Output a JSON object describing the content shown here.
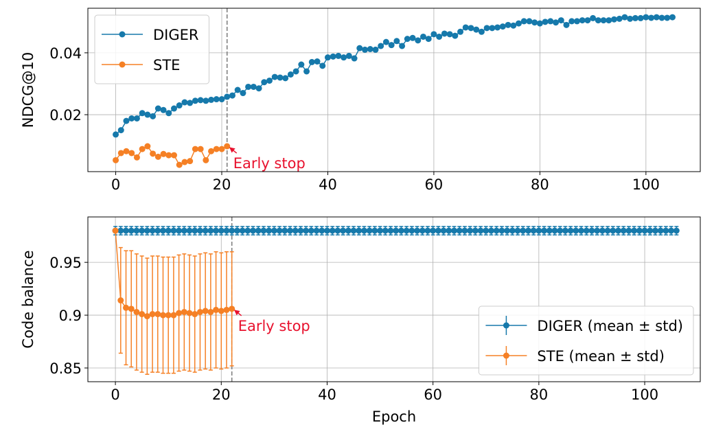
{
  "chart_data": [
    {
      "type": "line",
      "ylabel": "NDCG@10",
      "xlim": [
        -5.25,
        110.25
      ],
      "xticks": [
        0,
        20,
        40,
        60,
        80,
        100
      ],
      "ylim": [
        0.0016,
        0.0544
      ],
      "yticks": [
        0.02,
        0.04
      ],
      "grid": true,
      "legend": "upper left",
      "vline": 21,
      "annotation": {
        "text": "Early stop",
        "x": 21,
        "y": 0.0098,
        "color": "#e8112d"
      },
      "series": [
        {
          "name": "DIGER",
          "color": "#1679ab",
          "x": [
            0,
            1,
            2,
            3,
            4,
            5,
            6,
            7,
            8,
            9,
            10,
            11,
            12,
            13,
            14,
            15,
            16,
            17,
            18,
            19,
            20,
            21,
            22,
            23,
            24,
            25,
            26,
            27,
            28,
            29,
            30,
            31,
            32,
            33,
            34,
            35,
            36,
            37,
            38,
            39,
            40,
            41,
            42,
            43,
            44,
            45,
            46,
            47,
            48,
            49,
            50,
            51,
            52,
            53,
            54,
            55,
            56,
            57,
            58,
            59,
            60,
            61,
            62,
            63,
            64,
            65,
            66,
            67,
            68,
            69,
            70,
            71,
            72,
            73,
            74,
            75,
            76,
            77,
            78,
            79,
            80,
            81,
            82,
            83,
            84,
            85,
            86,
            87,
            88,
            89,
            90,
            91,
            92,
            93,
            94,
            95,
            96,
            97,
            98,
            99,
            100,
            101,
            102,
            103,
            104,
            105
          ],
          "values": [
            0.0136,
            0.015,
            0.018,
            0.0188,
            0.0188,
            0.0205,
            0.02,
            0.0195,
            0.022,
            0.0215,
            0.0205,
            0.022,
            0.023,
            0.024,
            0.0238,
            0.0245,
            0.0247,
            0.0245,
            0.0248,
            0.025,
            0.025,
            0.0258,
            0.0262,
            0.028,
            0.027,
            0.029,
            0.029,
            0.0285,
            0.0305,
            0.031,
            0.0322,
            0.032,
            0.0318,
            0.033,
            0.034,
            0.0362,
            0.034,
            0.037,
            0.0372,
            0.0358,
            0.0385,
            0.0388,
            0.039,
            0.0385,
            0.039,
            0.0382,
            0.0415,
            0.041,
            0.0412,
            0.041,
            0.0422,
            0.0435,
            0.0425,
            0.0438,
            0.0422,
            0.0445,
            0.0448,
            0.044,
            0.0452,
            0.0445,
            0.046,
            0.0452,
            0.0462,
            0.046,
            0.0455,
            0.0468,
            0.0482,
            0.048,
            0.0475,
            0.0468,
            0.048,
            0.048,
            0.0482,
            0.0485,
            0.049,
            0.0488,
            0.0495,
            0.0502,
            0.0502,
            0.0498,
            0.0495,
            0.05,
            0.0502,
            0.0498,
            0.0505,
            0.049,
            0.0502,
            0.0502,
            0.0505,
            0.0505,
            0.0512,
            0.0505,
            0.0505,
            0.0505,
            0.0508,
            0.051,
            0.0515,
            0.051,
            0.0512,
            0.0512,
            0.0515,
            0.0513,
            0.0515,
            0.0513,
            0.0513,
            0.0515
          ]
        },
        {
          "name": "STE",
          "color": "#f58025",
          "x": [
            0,
            1,
            2,
            3,
            4,
            5,
            6,
            7,
            8,
            9,
            10,
            11,
            12,
            13,
            14,
            15,
            16,
            17,
            18,
            19,
            20,
            21
          ],
          "values": [
            0.0053,
            0.0076,
            0.0082,
            0.0076,
            0.0062,
            0.0089,
            0.0098,
            0.0074,
            0.0064,
            0.0073,
            0.0069,
            0.0069,
            0.0038,
            0.0047,
            0.005,
            0.0089,
            0.0089,
            0.0053,
            0.0082,
            0.0089,
            0.0089,
            0.0098
          ]
        }
      ]
    },
    {
      "type": "errorbar",
      "ylabel": "Code balance",
      "xlabel": "Epoch",
      "xlim": [
        -5.2,
        110.5
      ],
      "xticks": [
        0,
        20,
        40,
        60,
        80,
        100
      ],
      "ylim": [
        0.837,
        0.993
      ],
      "yticks": [
        0.85,
        0.9,
        0.95
      ],
      "grid": true,
      "legend": "lower right",
      "vline": 22,
      "annotation": {
        "text": "Early stop",
        "x": 22,
        "y": 0.906,
        "color": "#e8112d"
      },
      "series": [
        {
          "name": "DIGER (mean ± std)",
          "color": "#1679ab",
          "x": [
            0,
            1,
            2,
            3,
            4,
            5,
            6,
            7,
            8,
            9,
            10,
            11,
            12,
            13,
            14,
            15,
            16,
            17,
            18,
            19,
            20,
            21,
            22,
            23,
            24,
            25,
            26,
            27,
            28,
            29,
            30,
            31,
            32,
            33,
            34,
            35,
            36,
            37,
            38,
            39,
            40,
            41,
            42,
            43,
            44,
            45,
            46,
            47,
            48,
            49,
            50,
            51,
            52,
            53,
            54,
            55,
            56,
            57,
            58,
            59,
            60,
            61,
            62,
            63,
            64,
            65,
            66,
            67,
            68,
            69,
            70,
            71,
            72,
            73,
            74,
            75,
            76,
            77,
            78,
            79,
            80,
            81,
            82,
            83,
            84,
            85,
            86,
            87,
            88,
            89,
            90,
            91,
            92,
            93,
            94,
            95,
            96,
            97,
            98,
            99,
            100,
            101,
            102,
            103,
            104,
            105,
            106
          ],
          "values": [
            0.98,
            0.98,
            0.98,
            0.98,
            0.98,
            0.98,
            0.98,
            0.98,
            0.98,
            0.98,
            0.98,
            0.98,
            0.98,
            0.98,
            0.98,
            0.98,
            0.98,
            0.98,
            0.98,
            0.98,
            0.98,
            0.98,
            0.98,
            0.98,
            0.98,
            0.98,
            0.98,
            0.98,
            0.98,
            0.98,
            0.98,
            0.98,
            0.98,
            0.98,
            0.98,
            0.98,
            0.98,
            0.98,
            0.98,
            0.98,
            0.98,
            0.98,
            0.98,
            0.98,
            0.98,
            0.98,
            0.98,
            0.98,
            0.98,
            0.98,
            0.98,
            0.98,
            0.98,
            0.98,
            0.98,
            0.98,
            0.98,
            0.98,
            0.98,
            0.98,
            0.98,
            0.98,
            0.98,
            0.98,
            0.98,
            0.98,
            0.98,
            0.98,
            0.98,
            0.98,
            0.98,
            0.98,
            0.98,
            0.98,
            0.98,
            0.98,
            0.98,
            0.98,
            0.98,
            0.98,
            0.98,
            0.98,
            0.98,
            0.98,
            0.98,
            0.98,
            0.98,
            0.98,
            0.98,
            0.98,
            0.98,
            0.98,
            0.98,
            0.98,
            0.98,
            0.98,
            0.98,
            0.98,
            0.98,
            0.98,
            0.98,
            0.98,
            0.98,
            0.98,
            0.98,
            0.98,
            0.98
          ],
          "errors": [
            0.004,
            0.004,
            0.004,
            0.004,
            0.004,
            0.004,
            0.004,
            0.004,
            0.004,
            0.004,
            0.004,
            0.004,
            0.004,
            0.004,
            0.004,
            0.004,
            0.004,
            0.004,
            0.004,
            0.004,
            0.004,
            0.004,
            0.004,
            0.004,
            0.004,
            0.004,
            0.004,
            0.004,
            0.004,
            0.004,
            0.004,
            0.004,
            0.004,
            0.004,
            0.004,
            0.004,
            0.004,
            0.004,
            0.004,
            0.004,
            0.004,
            0.004,
            0.004,
            0.004,
            0.004,
            0.004,
            0.004,
            0.004,
            0.004,
            0.004,
            0.004,
            0.004,
            0.004,
            0.004,
            0.004,
            0.004,
            0.004,
            0.004,
            0.004,
            0.004,
            0.004,
            0.004,
            0.004,
            0.004,
            0.004,
            0.004,
            0.004,
            0.004,
            0.004,
            0.004,
            0.004,
            0.004,
            0.004,
            0.004,
            0.004,
            0.004,
            0.004,
            0.004,
            0.004,
            0.004,
            0.004,
            0.004,
            0.004,
            0.004,
            0.004,
            0.004,
            0.004,
            0.004,
            0.004,
            0.004,
            0.004,
            0.004,
            0.004,
            0.004,
            0.004,
            0.004,
            0.004,
            0.004,
            0.004,
            0.004,
            0.004,
            0.004,
            0.004,
            0.004,
            0.004,
            0.004,
            0.004
          ]
        },
        {
          "name": "STE (mean ± std)",
          "color": "#f58025",
          "x": [
            0,
            1,
            2,
            3,
            4,
            5,
            6,
            7,
            8,
            9,
            10,
            11,
            12,
            13,
            14,
            15,
            16,
            17,
            18,
            19,
            20,
            21,
            22
          ],
          "values": [
            0.98,
            0.914,
            0.907,
            0.906,
            0.903,
            0.901,
            0.899,
            0.901,
            0.901,
            0.9,
            0.9,
            0.9,
            0.902,
            0.903,
            0.902,
            0.901,
            0.903,
            0.904,
            0.903,
            0.905,
            0.904,
            0.905,
            0.906
          ],
          "errors": [
            0,
            0.05,
            0.054,
            0.055,
            0.055,
            0.055,
            0.055,
            0.055,
            0.055,
            0.055,
            0.055,
            0.055,
            0.055,
            0.055,
            0.055,
            0.055,
            0.055,
            0.055,
            0.055,
            0.055,
            0.055,
            0.055,
            0.054
          ]
        }
      ]
    }
  ]
}
